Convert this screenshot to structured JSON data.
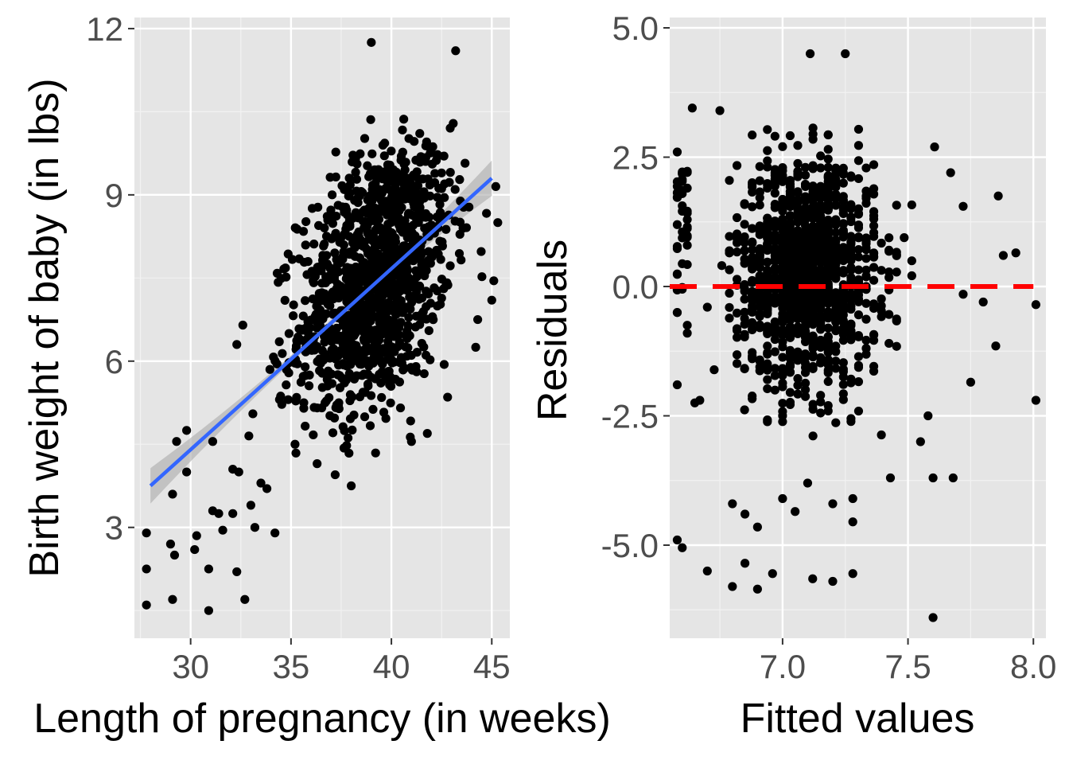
{
  "chart_data": [
    {
      "type": "scatter",
      "title": "",
      "xlabel": "Length of pregnancy (in weeks)",
      "ylabel": "Birth weight of baby (in lbs)",
      "xlim": [
        27.2,
        45.9
      ],
      "ylim": [
        1.0,
        12.2
      ],
      "x_ticks": [
        30,
        35,
        40,
        45
      ],
      "x_tick_labels": [
        "30",
        "35",
        "40",
        "45"
      ],
      "y_ticks": [
        3,
        6,
        9,
        12
      ],
      "y_tick_labels": [
        "3",
        "6",
        "9",
        "12"
      ],
      "grid": true,
      "legend": "none",
      "point_color": "#000000",
      "panel_bg": "#e5e5e5",
      "fit_line": {
        "x": [
          28,
          45
        ],
        "y": [
          3.75,
          9.3
        ],
        "color": "#3366ff",
        "band_color": "#aaaaaa",
        "band_halfwidth_ends": 0.32,
        "band_halfwidth_center": 0.06
      },
      "points_outlier": [
        [
          27.8,
          2.9
        ],
        [
          27.8,
          2.25
        ],
        [
          27.8,
          1.6
        ],
        [
          29.0,
          2.7
        ],
        [
          29.2,
          2.5
        ],
        [
          29.1,
          1.7
        ],
        [
          29.1,
          3.6
        ],
        [
          29.3,
          4.55
        ],
        [
          29.8,
          4.75
        ],
        [
          29.8,
          4.0
        ],
        [
          30.3,
          2.85
        ],
        [
          30.2,
          2.6
        ],
        [
          30.9,
          2.25
        ],
        [
          30.9,
          1.5
        ],
        [
          31.1,
          4.55
        ],
        [
          31.1,
          3.3
        ],
        [
          31.4,
          3.25
        ],
        [
          31.6,
          2.95
        ],
        [
          32.1,
          3.25
        ],
        [
          32.3,
          2.2
        ],
        [
          32.1,
          4.05
        ],
        [
          32.3,
          6.3
        ],
        [
          32.6,
          6.65
        ],
        [
          32.4,
          4.0
        ],
        [
          32.7,
          1.7
        ],
        [
          33.0,
          3.4
        ],
        [
          32.9,
          4.65
        ],
        [
          33.1,
          5.05
        ],
        [
          33.2,
          3.0
        ],
        [
          33.5,
          3.8
        ],
        [
          33.8,
          3.7
        ],
        [
          34.2,
          2.9
        ],
        [
          34.3,
          5.95
        ],
        [
          35.2,
          4.5
        ],
        [
          36.3,
          4.15
        ],
        [
          37.2,
          3.95
        ],
        [
          38.0,
          3.75
        ],
        [
          39.0,
          11.75
        ],
        [
          41.0,
          4.55
        ],
        [
          42.8,
          5.35
        ],
        [
          43.2,
          11.6
        ],
        [
          45.0,
          7.1
        ],
        [
          45.1,
          7.45
        ],
        [
          45.3,
          8.5
        ],
        [
          45.2,
          9.15
        ],
        [
          44.2,
          6.25
        ],
        [
          44.3,
          6.75
        ]
      ],
      "cloud_mean": [
        39.2,
        7.5
      ],
      "cloud_sd": [
        1.9,
        1.15
      ],
      "cloud_count": 1250,
      "cloud_xrange": [
        33.5,
        44.8
      ],
      "cloud_yrange": [
        4.3,
        10.4
      ]
    },
    {
      "type": "scatter",
      "title": "",
      "xlabel": "Fitted values",
      "ylabel": "Residuals",
      "xlim": [
        6.55,
        8.05
      ],
      "ylim": [
        -6.8,
        5.2
      ],
      "x_ticks": [
        7.0,
        7.5,
        8.0
      ],
      "x_tick_labels": [
        "7.0",
        "7.5",
        "8.0"
      ],
      "y_ticks": [
        -5.0,
        -2.5,
        0.0,
        2.5,
        5.0
      ],
      "y_tick_labels": [
        "-5.0",
        "-2.5",
        "0.0",
        "2.5",
        "5.0"
      ],
      "grid": true,
      "legend": "none",
      "point_color": "#000000",
      "panel_bg": "#e5e5e5",
      "reference_line": {
        "y": 0,
        "color": "#ff0000",
        "style": "dashed"
      },
      "points_outlier": [
        [
          7.11,
          4.5
        ],
        [
          7.25,
          4.5
        ],
        [
          6.64,
          3.45
        ],
        [
          6.75,
          3.4
        ],
        [
          6.58,
          -4.9
        ],
        [
          6.6,
          -5.05
        ],
        [
          6.7,
          -5.5
        ],
        [
          6.8,
          -5.8
        ],
        [
          6.85,
          -5.35
        ],
        [
          6.9,
          -5.85
        ],
        [
          6.96,
          -5.55
        ],
        [
          7.12,
          -5.65
        ],
        [
          7.2,
          -5.7
        ],
        [
          7.28,
          -5.55
        ],
        [
          7.6,
          -6.4
        ],
        [
          6.8,
          -4.2
        ],
        [
          6.85,
          -4.4
        ],
        [
          6.9,
          -4.65
        ],
        [
          7.0,
          -4.1
        ],
        [
          7.05,
          -4.35
        ],
        [
          7.2,
          -4.2
        ],
        [
          7.1,
          -3.8
        ],
        [
          7.28,
          -4.1
        ],
        [
          7.28,
          -4.55
        ],
        [
          7.43,
          -3.7
        ],
        [
          7.6,
          -3.7
        ],
        [
          7.68,
          -3.7
        ],
        [
          7.58,
          -2.5
        ],
        [
          7.55,
          -3.0
        ],
        [
          7.75,
          -1.85
        ],
        [
          7.72,
          -0.15
        ],
        [
          7.8,
          -0.3
        ],
        [
          7.85,
          -1.15
        ],
        [
          7.88,
          0.6
        ],
        [
          7.93,
          0.65
        ],
        [
          7.86,
          1.75
        ],
        [
          7.72,
          1.55
        ],
        [
          7.67,
          2.2
        ],
        [
          8.01,
          -0.35
        ],
        [
          8.01,
          -2.2
        ],
        [
          6.58,
          -1.9
        ],
        [
          6.58,
          2.6
        ],
        [
          6.65,
          -2.25
        ],
        [
          6.67,
          -2.2
        ],
        [
          6.7,
          -0.4
        ]
      ],
      "cloud_mean": [
        7.1,
        0.3
      ],
      "cloud_sd": [
        0.14,
        1.1
      ],
      "cloud_count": 1250,
      "cloud_xrange": [
        6.72,
        7.62
      ],
      "cloud_yrange": [
        -3.2,
        3.1
      ],
      "column_x": [
        6.58,
        6.6,
        6.62
      ],
      "column_count": 40,
      "column_yrange": [
        -1.0,
        2.3
      ]
    }
  ]
}
